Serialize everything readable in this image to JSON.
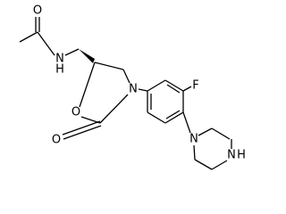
{
  "atoms": [
    "O",
    "N",
    "H",
    "O",
    "O",
    "N",
    "F",
    "N",
    "N",
    "H"
  ]
}
